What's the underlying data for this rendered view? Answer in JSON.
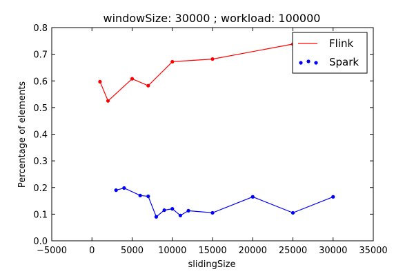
{
  "chart_data": {
    "type": "line",
    "title": "windowSize: 30000 ; workload: 100000",
    "xlabel": "slidingSize",
    "ylabel": "Percentage of elements",
    "xlim": [
      -5000,
      35000
    ],
    "ylim": [
      0.0,
      0.8
    ],
    "xticks": [
      -5000,
      0,
      5000,
      10000,
      15000,
      20000,
      25000,
      30000,
      35000
    ],
    "yticks": [
      0.0,
      0.1,
      0.2,
      0.3,
      0.4,
      0.5,
      0.6,
      0.7,
      0.8
    ],
    "xtick_labels": [
      "−5000",
      "0",
      "5000",
      "10000",
      "15000",
      "20000",
      "25000",
      "30000",
      "35000"
    ],
    "ytick_labels": [
      "0.0",
      "0.1",
      "0.2",
      "0.3",
      "0.4",
      "0.5",
      "0.6",
      "0.7",
      "0.8"
    ],
    "grid": false,
    "legend_position": "top-right",
    "series": [
      {
        "name": "Flink",
        "color": "#ff0000",
        "x": [
          1000,
          2000,
          5000,
          7000,
          10000,
          15000,
          25000
        ],
        "y": [
          0.597,
          0.525,
          0.608,
          0.582,
          0.672,
          0.682,
          0.738
        ]
      },
      {
        "name": "Spark",
        "color": "#0000ff",
        "x": [
          3000,
          4000,
          6000,
          7000,
          8000,
          9000,
          10000,
          11000,
          12000,
          15000,
          20000,
          25000,
          30000
        ],
        "y": [
          0.19,
          0.198,
          0.17,
          0.167,
          0.09,
          0.115,
          0.12,
          0.095,
          0.113,
          0.105,
          0.165,
          0.105,
          0.165
        ]
      }
    ]
  }
}
